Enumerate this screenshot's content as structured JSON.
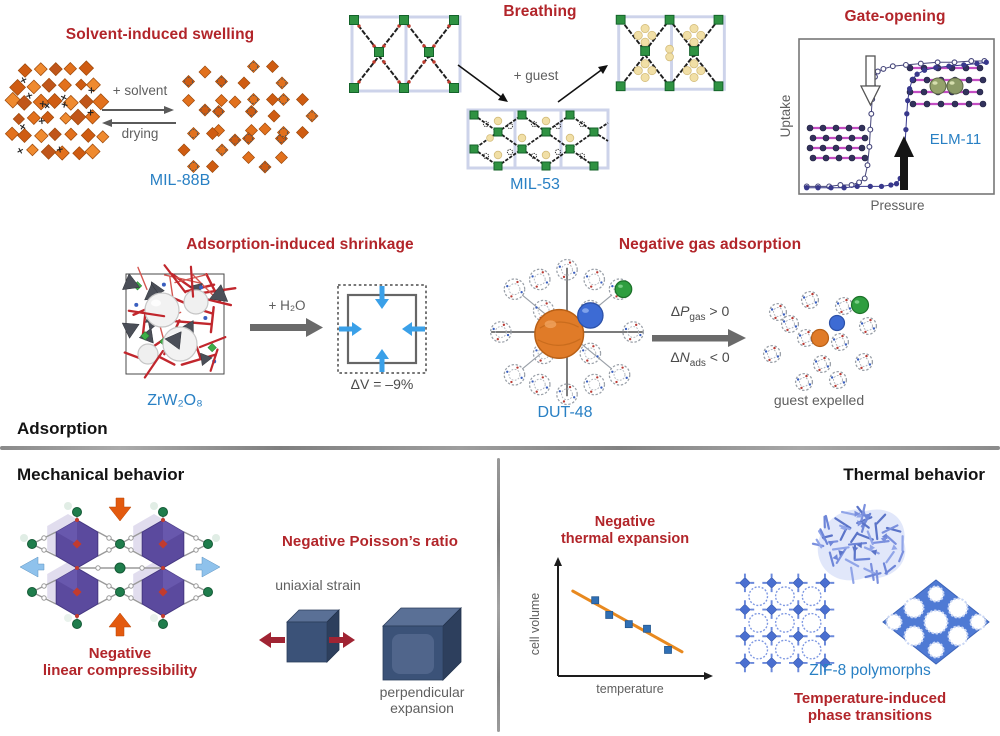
{
  "figure": {
    "section_adsorption": {
      "label": "Adsorption",
      "solvent_swelling": {
        "title": "Solvent-induced swelling",
        "forward": "+ solvent",
        "reverse": "drying",
        "material": "MIL-88B"
      },
      "breathing": {
        "title": "Breathing",
        "guest": "+ guest",
        "material": "MIL-53"
      },
      "gate_opening": {
        "title": "Gate-opening",
        "material": "ELM-11",
        "xlabel": "Pressure",
        "ylabel": "Uptake"
      },
      "shrinkage": {
        "title": "Adsorption-induced shrinkage",
        "arrow_label": "+ H₂O",
        "delta_v": "ΔV = –9%",
        "material": "ZrW₂O₈"
      },
      "negative_gas_adsorption": {
        "title": "Negative gas adsorption",
        "dp": {
          "delta": "Δ",
          "symbol": "P",
          "sub": "gas",
          "rest": " > 0"
        },
        "dn": {
          "delta": "Δ",
          "symbol": "N",
          "sub": "ads",
          "rest": " < 0"
        },
        "material": "DUT-48",
        "result": "guest expelled"
      }
    },
    "section_mechanical": {
      "heading": "Mechanical behavior",
      "nlc": {
        "line1": "Negative",
        "line2": "linear compressibility"
      },
      "poisson": {
        "title": "Negative Poisson’s ratio",
        "strain": "uniaxial strain",
        "exp1": "perpendicular",
        "exp2": "expansion"
      }
    },
    "section_thermal": {
      "heading": "Thermal behavior",
      "nte": {
        "line1": "Negative",
        "line2": "thermal expansion",
        "xlabel": "temperature",
        "ylabel": "cell volume"
      },
      "zif": {
        "material": "ZIF-8 polymorphs",
        "cap1": "Temperature-induced",
        "cap2": "phase transitions"
      }
    }
  },
  "colors": {
    "title_red": "#b2252a",
    "material_blue": "#2980c4",
    "gray_text": "#5f5f5f",
    "heading_black": "#131313",
    "mof_orange": "#e2711d",
    "node_green": "#2f9242",
    "guest_yellow": "#f1dfa6",
    "elm_magenta": "#c44ec4",
    "isotherm_navy": "#39398c",
    "shrink_arrow_cyan": "#3aa0e8",
    "compress_orange": "#e35a0f",
    "expand_blue": "#8fc2ec",
    "cube_blue": "#3b5278",
    "strain_arrow_red": "#a02433",
    "trend_orange": "#e8891f",
    "marker_blue": "#2f6fb5",
    "zif_blue": "#4f7ad4"
  },
  "chart_data": [
    {
      "id": "gate-opening-isotherm",
      "type": "line",
      "title": "Gate-opening",
      "xlabel": "Pressure",
      "ylabel": "Uptake",
      "annotation": "ELM-11",
      "axis_note": "arbitrary units, no tick labels shown",
      "legend_position": "none",
      "xlim": [
        0,
        1
      ],
      "ylim": [
        0,
        1
      ],
      "series": [
        {
          "name": "adsorption (increasing pressure)",
          "marker": "filled-circle",
          "color": "#39398c",
          "x": [
            0.02,
            0.08,
            0.15,
            0.22,
            0.29,
            0.36,
            0.42,
            0.47,
            0.5,
            0.52,
            0.535,
            0.545,
            0.55,
            0.555,
            0.56,
            0.57,
            0.585,
            0.61,
            0.65,
            0.71,
            0.78,
            0.86,
            0.93,
            0.98
          ],
          "y": [
            0.01,
            0.01,
            0.01,
            0.01,
            0.02,
            0.02,
            0.02,
            0.03,
            0.04,
            0.08,
            0.18,
            0.32,
            0.45,
            0.57,
            0.67,
            0.76,
            0.83,
            0.87,
            0.9,
            0.92,
            0.93,
            0.94,
            0.95,
            0.96
          ]
        },
        {
          "name": "desorption (decreasing pressure)",
          "marker": "open-circle",
          "color": "#45457a",
          "x": [
            0.02,
            0.08,
            0.14,
            0.2,
            0.26,
            0.3,
            0.33,
            0.345,
            0.355,
            0.36,
            0.365,
            0.37,
            0.375,
            0.385,
            0.4,
            0.43,
            0.48,
            0.55,
            0.63,
            0.72,
            0.81,
            0.9,
            0.97
          ],
          "y": [
            0.02,
            0.02,
            0.02,
            0.03,
            0.03,
            0.05,
            0.08,
            0.18,
            0.32,
            0.45,
            0.57,
            0.68,
            0.78,
            0.85,
            0.89,
            0.91,
            0.93,
            0.94,
            0.95,
            0.96,
            0.96,
            0.97,
            0.97
          ]
        }
      ]
    },
    {
      "id": "negative-thermal-expansion",
      "type": "scatter",
      "xlabel": "temperature",
      "ylabel": "cell volume",
      "axis_note": "arbitrary units, no tick labels shown",
      "marker": "square",
      "marker_color": "#2f6fb5",
      "points_x": [
        0.28,
        0.38,
        0.52,
        0.65,
        0.8
      ],
      "points_y": [
        0.78,
        0.62,
        0.52,
        0.47,
        0.24
      ],
      "trend_line": {
        "x": [
          0.12,
          0.9
        ],
        "y": [
          0.88,
          0.22
        ],
        "color": "#e8891f"
      }
    }
  ]
}
